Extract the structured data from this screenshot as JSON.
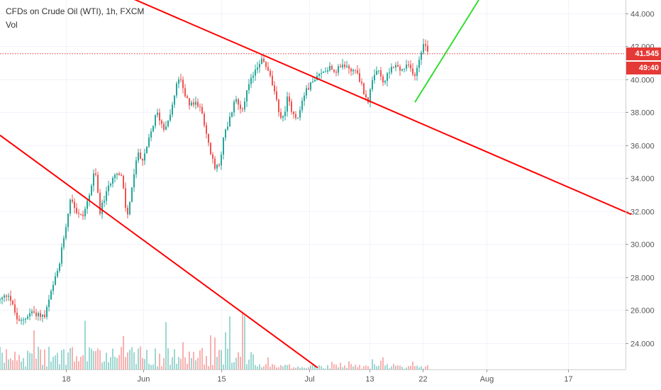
{
  "legend": {
    "title": "CFDs on Crude Oil (WTI), 1h, FXCM",
    "volume_label": "Vol"
  },
  "price_tag": {
    "value": "41.545",
    "countdown": "49:40"
  },
  "colors": {
    "up": "#26a69a",
    "down": "#ef5350",
    "trendline": "#ff0000",
    "projection": "#33dd33",
    "last_price_line": "#e53935"
  },
  "chart_data": {
    "type": "candlestick",
    "title": "CFDs on Crude Oil (WTI), 1h, FXCM",
    "xlabel": "",
    "ylabel": "",
    "ylim": [
      22.4,
      44.8
    ],
    "y_ticks": [
      24,
      26,
      28,
      30,
      32,
      34,
      36,
      38,
      40,
      42,
      44
    ],
    "y_tick_labels": [
      "24.000",
      "26.000",
      "28.000",
      "30.000",
      "32.000",
      "34.000",
      "36.000",
      "38.000",
      "40.000",
      "42.000",
      "44.000"
    ],
    "x_ticks": [
      "18",
      "Jun",
      "15",
      "Jul",
      "13",
      "22",
      "Aug",
      "17"
    ],
    "last_price": 41.545,
    "price_path_anchors": [
      {
        "t": 0.0,
        "v": 26.6
      },
      {
        "t": 1.2,
        "v": 27.0
      },
      {
        "t": 2.6,
        "v": 25.2
      },
      {
        "t": 4.5,
        "v": 25.9
      },
      {
        "t": 6.3,
        "v": 25.6
      },
      {
        "t": 7.3,
        "v": 27.2
      },
      {
        "t": 8.3,
        "v": 28.6
      },
      {
        "t": 9.3,
        "v": 31.2
      },
      {
        "t": 10.0,
        "v": 33.0
      },
      {
        "t": 10.7,
        "v": 32.0
      },
      {
        "t": 11.6,
        "v": 31.6
      },
      {
        "t": 12.6,
        "v": 33.0
      },
      {
        "t": 13.4,
        "v": 34.5
      },
      {
        "t": 14.1,
        "v": 32.0
      },
      {
        "t": 15.1,
        "v": 33.2
      },
      {
        "t": 16.1,
        "v": 34.4
      },
      {
        "t": 17.2,
        "v": 34.0
      },
      {
        "t": 17.9,
        "v": 31.5
      },
      {
        "t": 18.6,
        "v": 33.5
      },
      {
        "t": 19.5,
        "v": 35.6
      },
      {
        "t": 20.2,
        "v": 35.0
      },
      {
        "t": 21.1,
        "v": 36.5
      },
      {
        "t": 22.1,
        "v": 38.0
      },
      {
        "t": 23.1,
        "v": 37.0
      },
      {
        "t": 24.1,
        "v": 38.0
      },
      {
        "t": 24.9,
        "v": 39.6
      },
      {
        "t": 25.3,
        "v": 40.2
      },
      {
        "t": 26.0,
        "v": 39.0
      },
      {
        "t": 26.9,
        "v": 38.4
      },
      {
        "t": 27.8,
        "v": 38.6
      },
      {
        "t": 28.7,
        "v": 37.6
      },
      {
        "t": 29.5,
        "v": 35.8
      },
      {
        "t": 30.3,
        "v": 34.6
      },
      {
        "t": 31.0,
        "v": 35.0
      },
      {
        "t": 31.6,
        "v": 36.6
      },
      {
        "t": 32.4,
        "v": 37.6
      },
      {
        "t": 33.2,
        "v": 38.8
      },
      {
        "t": 34.1,
        "v": 38.2
      },
      {
        "t": 35.1,
        "v": 39.6
      },
      {
        "t": 36.0,
        "v": 40.6
      },
      {
        "t": 36.8,
        "v": 41.2
      },
      {
        "t": 37.4,
        "v": 40.9
      },
      {
        "t": 38.2,
        "v": 40.0
      },
      {
        "t": 39.0,
        "v": 38.6
      },
      {
        "t": 39.8,
        "v": 37.4
      },
      {
        "t": 40.5,
        "v": 38.8
      },
      {
        "t": 41.2,
        "v": 38.1
      },
      {
        "t": 42.0,
        "v": 37.6
      },
      {
        "t": 42.8,
        "v": 39.0
      },
      {
        "t": 43.6,
        "v": 39.6
      },
      {
        "t": 44.5,
        "v": 40.0
      },
      {
        "t": 45.5,
        "v": 40.4
      },
      {
        "t": 46.5,
        "v": 40.8
      },
      {
        "t": 47.4,
        "v": 40.5
      },
      {
        "t": 48.4,
        "v": 40.9
      },
      {
        "t": 49.4,
        "v": 40.6
      },
      {
        "t": 50.4,
        "v": 40.4
      },
      {
        "t": 51.3,
        "v": 39.2
      },
      {
        "t": 51.9,
        "v": 38.7
      },
      {
        "t": 52.5,
        "v": 39.8
      },
      {
        "t": 53.3,
        "v": 40.6
      },
      {
        "t": 54.1,
        "v": 39.7
      },
      {
        "t": 54.8,
        "v": 40.5
      },
      {
        "t": 55.6,
        "v": 40.9
      },
      {
        "t": 56.5,
        "v": 40.5
      },
      {
        "t": 57.5,
        "v": 40.8
      },
      {
        "t": 58.5,
        "v": 40.3
      },
      {
        "t": 59.1,
        "v": 41.2
      },
      {
        "t": 59.7,
        "v": 42.3
      },
      {
        "t": 60.4,
        "v": 41.55
      }
    ],
    "trendlines": [
      {
        "name": "upper",
        "from": {
          "t": 17.0,
          "v": 45.2
        },
        "to": {
          "t": 89.0,
          "v": 31.8
        }
      },
      {
        "name": "lower",
        "from": {
          "t": 0.0,
          "v": 36.6
        },
        "to": {
          "t": 44.8,
          "v": 22.5
        }
      },
      {
        "name": "projection",
        "from": {
          "t": 58.5,
          "v": 38.6
        },
        "to": {
          "t": 67.5,
          "v": 44.8
        }
      }
    ]
  }
}
